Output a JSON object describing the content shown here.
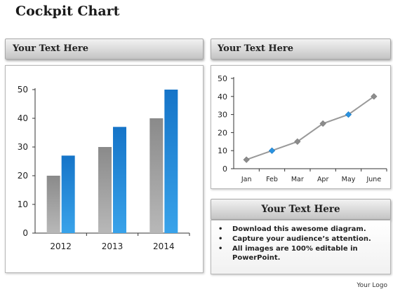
{
  "title": "Cockpit Chart",
  "headers": {
    "left": "Your Text Here",
    "right": "Your Text Here",
    "bottom": "Your Text Here"
  },
  "bullets": [
    "Download this awesome diagram.",
    "Capture your audience’s attention.",
    "All images are 100% editable in PowerPoint."
  ],
  "logo": "Your Logo",
  "colors": {
    "gray_bar": "#959595",
    "blue_bar": "#1b7fd1",
    "line": "#999999",
    "marker_gray": "#8c8c8c",
    "marker_blue": "#2a93e0"
  },
  "chart_data": [
    {
      "type": "bar",
      "categories": [
        "2012",
        "2013",
        "2014"
      ],
      "series": [
        {
          "values": [
            20,
            30,
            40
          ]
        },
        {
          "values": [
            27,
            37,
            50
          ]
        }
      ],
      "ylim": [
        0,
        50
      ],
      "yticks": [
        0,
        10,
        20,
        30,
        40,
        50
      ],
      "grid": false
    },
    {
      "type": "line",
      "categories": [
        "Jan",
        "Feb",
        "Mar",
        "Apr",
        "May",
        "June"
      ],
      "values": [
        5,
        10,
        15,
        25,
        30,
        40
      ],
      "highlighted": [
        "Feb",
        "May"
      ],
      "ylim": [
        0,
        50
      ],
      "yticks": [
        0,
        10,
        20,
        30,
        40,
        50
      ],
      "grid": false
    }
  ]
}
